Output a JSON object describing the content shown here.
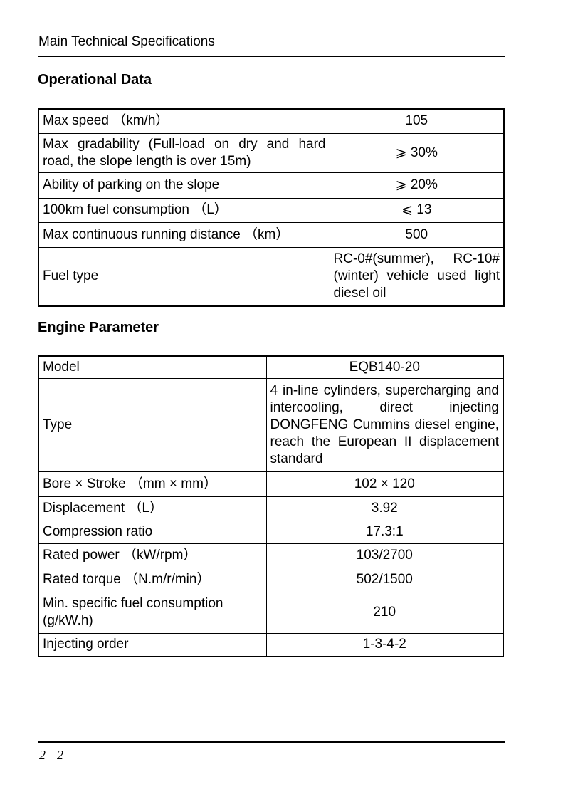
{
  "header": {
    "title": "Main Technical Specifications"
  },
  "operational": {
    "title": "Operational Data",
    "rows": [
      {
        "label": "Max speed （km/h）",
        "value": "105"
      },
      {
        "label": "Max gradability (Full-load on dry and hard road, the slope length is over 15m)",
        "value": "⩾ 30%"
      },
      {
        "label": "Ability of parking on the slope",
        "value": "⩾ 20%"
      },
      {
        "label": "100km fuel consumption （L）",
        "value": "⩽ 13"
      },
      {
        "label": "Max continuous running distance （km）",
        "value": "500"
      },
      {
        "label": "Fuel type",
        "value": "RC-0#(summer), RC-10#(winter) vehicle used light diesel oil"
      }
    ]
  },
  "engine": {
    "title": "Engine Parameter",
    "rows": [
      {
        "label": "Model",
        "value": "EQB140-20"
      },
      {
        "label": "Type",
        "value": "4 in-line cylinders, supercharging and intercooling, direct injecting DONGFENG Cummins diesel engine, reach the European II displacement standard"
      },
      {
        "label": "Bore × Stroke （mm × mm）",
        "value": "102 × 120"
      },
      {
        "label": "Displacement （L）",
        "value": "3.92"
      },
      {
        "label": "Compression ratio",
        "value": "17.3:1"
      },
      {
        "label": "Rated power （kW/rpm）",
        "value": "103/2700"
      },
      {
        "label": "Rated torque （N.m/r/min）",
        "value": "502/1500"
      },
      {
        "label": "Min. specific fuel consumption (g/kW.h)",
        "value": "210"
      },
      {
        "label": "Injecting order",
        "value": "1-3-4-2"
      }
    ]
  },
  "footer": {
    "page": "2—2"
  }
}
